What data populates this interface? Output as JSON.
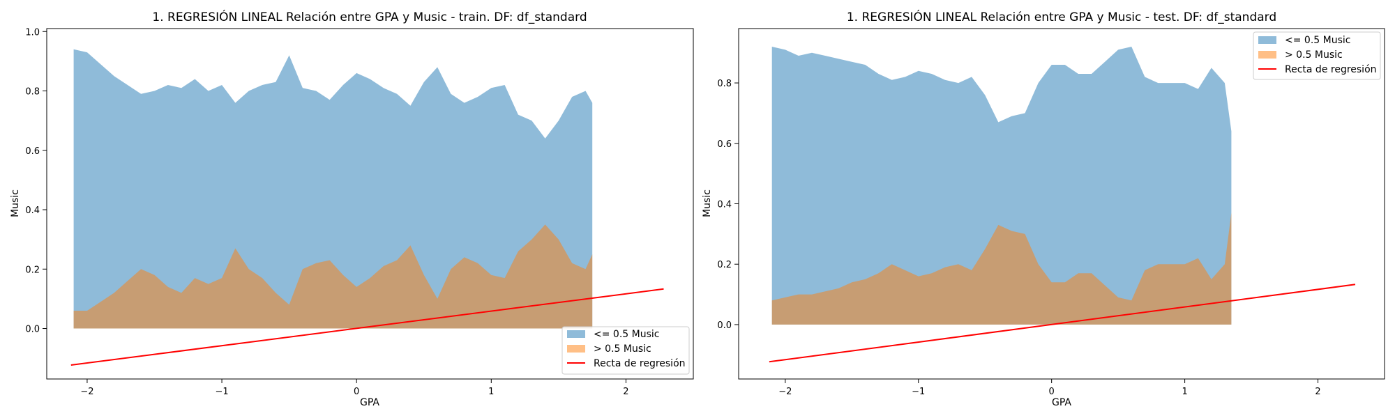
{
  "chart_data": [
    {
      "type": "area",
      "title": "1. REGRESIÓN LINEAL Relación entre GPA y Music - train. DF: df_standard",
      "xlabel": "GPA",
      "ylabel": "Music",
      "xlim": [
        -2.3,
        2.5
      ],
      "ylim": [
        -0.17,
        1.01
      ],
      "xticks": [
        -2,
        -1,
        0,
        1,
        2
      ],
      "xtick_labels": [
        "−2",
        "−1",
        "0",
        "1",
        "2"
      ],
      "yticks": [
        0.0,
        0.2,
        0.4,
        0.6,
        0.8,
        1.0
      ],
      "ytick_labels": [
        "0.0",
        "0.2",
        "0.4",
        "0.6",
        "0.8",
        "1.0"
      ],
      "legend_position": "lower-right",
      "series": [
        {
          "name": "<= 0.5 Music",
          "color": "#1f77b4",
          "x": [
            -2.1,
            -2.0,
            -1.9,
            -1.8,
            -1.7,
            -1.6,
            -1.5,
            -1.4,
            -1.3,
            -1.2,
            -1.1,
            -1.0,
            -0.9,
            -0.8,
            -0.7,
            -0.6,
            -0.5,
            -0.4,
            -0.3,
            -0.2,
            -0.1,
            0.0,
            0.1,
            0.2,
            0.3,
            0.4,
            0.5,
            0.6,
            0.7,
            0.8,
            0.9,
            1.0,
            1.1,
            1.2,
            1.3,
            1.4,
            1.5,
            1.6,
            1.7,
            1.75
          ],
          "values": [
            0.94,
            0.93,
            0.89,
            0.85,
            0.82,
            0.79,
            0.8,
            0.82,
            0.81,
            0.84,
            0.8,
            0.82,
            0.76,
            0.8,
            0.82,
            0.83,
            0.92,
            0.81,
            0.8,
            0.77,
            0.82,
            0.86,
            0.84,
            0.81,
            0.79,
            0.75,
            0.83,
            0.88,
            0.79,
            0.76,
            0.78,
            0.81,
            0.82,
            0.72,
            0.7,
            0.64,
            0.7,
            0.78,
            0.8,
            0.76
          ]
        },
        {
          "name": "> 0.5 Music",
          "color": "#ff7f0e",
          "x": [
            -2.1,
            -2.0,
            -1.9,
            -1.8,
            -1.7,
            -1.6,
            -1.5,
            -1.4,
            -1.3,
            -1.2,
            -1.1,
            -1.0,
            -0.9,
            -0.8,
            -0.7,
            -0.6,
            -0.5,
            -0.4,
            -0.3,
            -0.2,
            -0.1,
            0.0,
            0.1,
            0.2,
            0.3,
            0.4,
            0.5,
            0.6,
            0.7,
            0.8,
            0.9,
            1.0,
            1.1,
            1.2,
            1.3,
            1.4,
            1.5,
            1.6,
            1.7,
            1.75
          ],
          "values": [
            0.06,
            0.06,
            0.09,
            0.12,
            0.16,
            0.2,
            0.18,
            0.14,
            0.12,
            0.17,
            0.15,
            0.17,
            0.27,
            0.2,
            0.17,
            0.12,
            0.08,
            0.2,
            0.22,
            0.23,
            0.18,
            0.14,
            0.17,
            0.21,
            0.23,
            0.28,
            0.18,
            0.1,
            0.2,
            0.24,
            0.22,
            0.18,
            0.17,
            0.26,
            0.3,
            0.35,
            0.3,
            0.22,
            0.2,
            0.25
          ]
        },
        {
          "name": "Recta de regresión",
          "type": "line",
          "color": "#ff0000",
          "x": [
            -2.12,
            2.28
          ],
          "values": [
            -0.123,
            0.133
          ]
        }
      ]
    },
    {
      "type": "area",
      "title": "1. REGRESIÓN LINEAL Relación entre GPA y Music - test. DF: df_standard",
      "xlabel": "GPA",
      "ylabel": "Music",
      "xlim": [
        -2.35,
        2.5
      ],
      "ylim": [
        -0.18,
        0.98
      ],
      "xticks": [
        -2,
        -1,
        0,
        1,
        2
      ],
      "xtick_labels": [
        "−2",
        "−1",
        "0",
        "1",
        "2"
      ],
      "yticks": [
        0.0,
        0.2,
        0.4,
        0.6,
        0.8
      ],
      "ytick_labels": [
        "0.0",
        "0.2",
        "0.4",
        "0.6",
        "0.8"
      ],
      "legend_position": "top-right",
      "series": [
        {
          "name": "<= 0.5 Music",
          "color": "#1f77b4",
          "x": [
            -2.1,
            -2.0,
            -1.9,
            -1.8,
            -1.7,
            -1.6,
            -1.5,
            -1.4,
            -1.3,
            -1.2,
            -1.1,
            -1.0,
            -0.9,
            -0.8,
            -0.7,
            -0.6,
            -0.5,
            -0.4,
            -0.3,
            -0.2,
            -0.1,
            0.0,
            0.1,
            0.2,
            0.3,
            0.4,
            0.5,
            0.6,
            0.7,
            0.8,
            0.9,
            1.0,
            1.1,
            1.2,
            1.3,
            1.35
          ],
          "values": [
            0.92,
            0.91,
            0.89,
            0.9,
            0.89,
            0.88,
            0.87,
            0.86,
            0.83,
            0.81,
            0.82,
            0.84,
            0.83,
            0.81,
            0.8,
            0.82,
            0.76,
            0.67,
            0.69,
            0.7,
            0.8,
            0.86,
            0.86,
            0.83,
            0.83,
            0.87,
            0.91,
            0.92,
            0.82,
            0.8,
            0.8,
            0.8,
            0.78,
            0.85,
            0.8,
            0.64
          ]
        },
        {
          "name": "> 0.5 Music",
          "color": "#ff7f0e",
          "x": [
            -2.1,
            -2.0,
            -1.9,
            -1.8,
            -1.7,
            -1.6,
            -1.5,
            -1.4,
            -1.3,
            -1.2,
            -1.1,
            -1.0,
            -0.9,
            -0.8,
            -0.7,
            -0.6,
            -0.5,
            -0.4,
            -0.3,
            -0.2,
            -0.1,
            0.0,
            0.1,
            0.2,
            0.3,
            0.4,
            0.5,
            0.6,
            0.7,
            0.8,
            0.9,
            1.0,
            1.1,
            1.2,
            1.3,
            1.35
          ],
          "values": [
            0.08,
            0.09,
            0.1,
            0.1,
            0.11,
            0.12,
            0.14,
            0.15,
            0.17,
            0.2,
            0.18,
            0.16,
            0.17,
            0.19,
            0.2,
            0.18,
            0.25,
            0.33,
            0.31,
            0.3,
            0.2,
            0.14,
            0.14,
            0.17,
            0.17,
            0.13,
            0.09,
            0.08,
            0.18,
            0.2,
            0.2,
            0.2,
            0.22,
            0.15,
            0.2,
            0.37
          ]
        },
        {
          "name": "Recta de regresión",
          "type": "line",
          "color": "#ff0000",
          "x": [
            -2.12,
            2.28
          ],
          "values": [
            -0.123,
            0.133
          ]
        }
      ]
    }
  ]
}
